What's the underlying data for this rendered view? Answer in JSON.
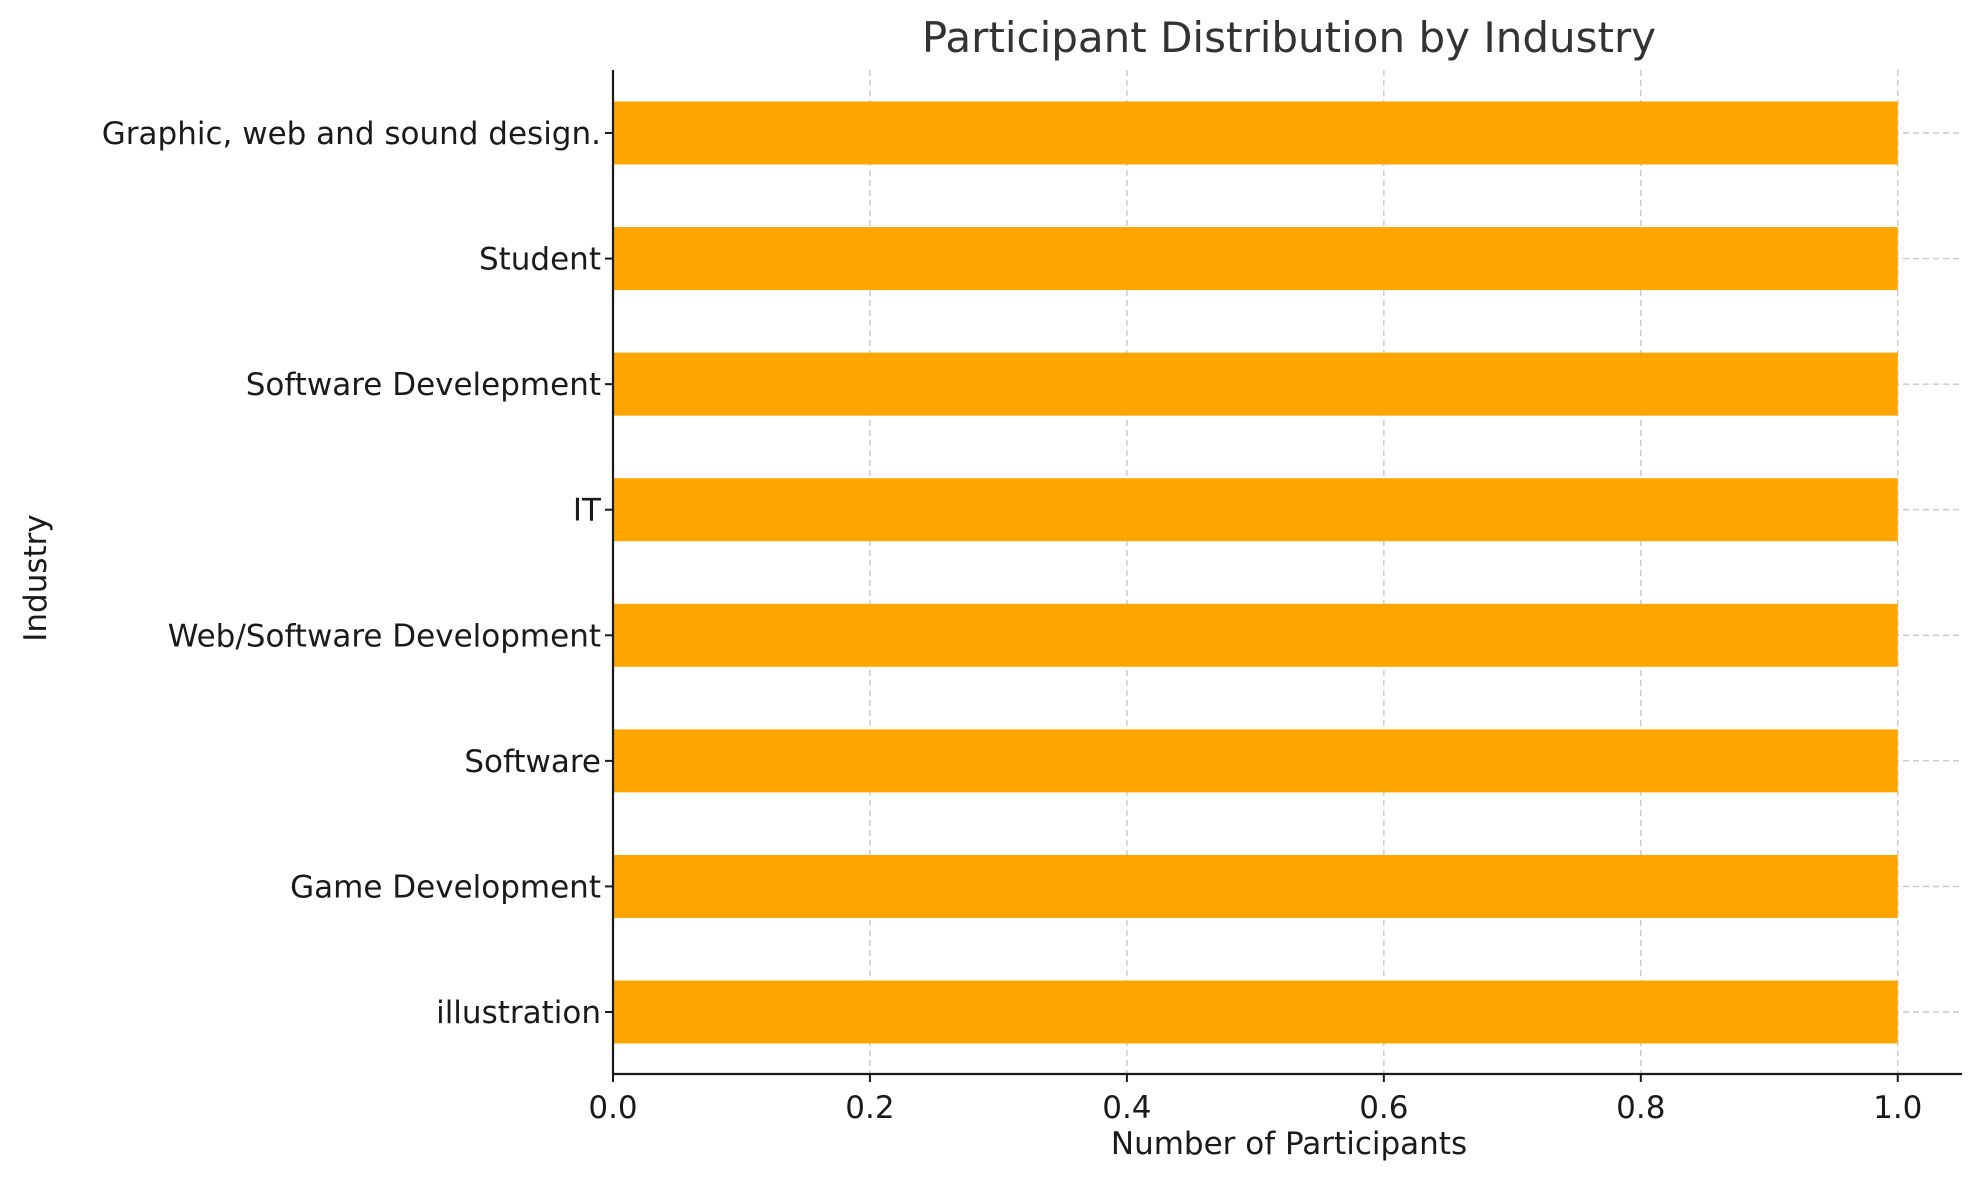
{
  "chart_data": {
    "type": "bar",
    "orientation": "horizontal",
    "title": "Participant Distribution by Industry",
    "xlabel": "Number of Participants",
    "ylabel": "Industry",
    "categories": [
      "illustration",
      "Game Development",
      "Software",
      "Web/Software Development",
      "IT",
      "Software Develepment",
      "Student",
      "Graphic, web and sound design."
    ],
    "values": [
      1,
      1,
      1,
      1,
      1,
      1,
      1,
      1
    ],
    "xlim": [
      0,
      1.05
    ],
    "xticks": [
      "0.0",
      "0.2",
      "0.4",
      "0.6",
      "0.8",
      "1.0"
    ],
    "xtick_values": [
      0,
      0.2,
      0.4,
      0.6,
      0.8,
      1.0
    ],
    "grid": true,
    "bar_color": "#FFA500"
  }
}
